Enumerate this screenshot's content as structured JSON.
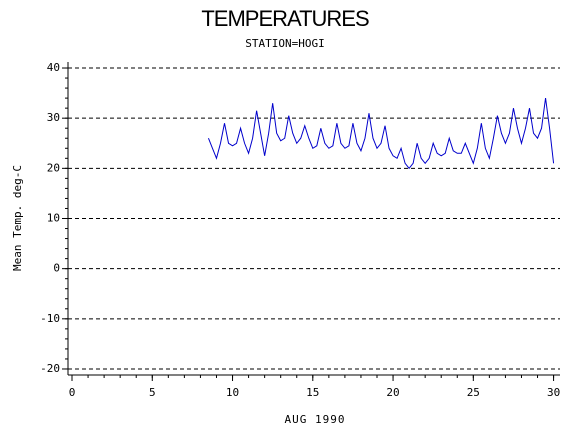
{
  "chart_data": {
    "type": "line",
    "title": "TEMPERATURES",
    "subtitle": "STATION=HOGI",
    "x_label": "AUG 1990",
    "y_label": "Mean Temp. deg-C",
    "x": [
      8.5,
      8.75,
      9.0,
      9.25,
      9.5,
      9.75,
      10.0,
      10.25,
      10.5,
      10.75,
      11.0,
      11.25,
      11.5,
      11.75,
      12.0,
      12.25,
      12.5,
      12.75,
      13.0,
      13.25,
      13.5,
      13.75,
      14.0,
      14.25,
      14.5,
      14.75,
      15.0,
      15.25,
      15.5,
      15.75,
      16.0,
      16.25,
      16.5,
      16.75,
      17.0,
      17.25,
      17.5,
      17.75,
      18.0,
      18.25,
      18.5,
      18.75,
      19.0,
      19.25,
      19.5,
      19.75,
      20.0,
      20.25,
      20.5,
      20.75,
      21.0,
      21.25,
      21.5,
      21.75,
      22.0,
      22.25,
      22.5,
      22.75,
      23.0,
      23.25,
      23.5,
      23.75,
      24.0,
      24.25,
      24.5,
      24.75,
      25.0,
      25.25,
      25.5,
      25.75,
      26.0,
      26.25,
      26.5,
      26.75,
      27.0,
      27.25,
      27.5,
      27.75,
      28.0,
      28.25,
      28.5,
      28.75,
      29.0,
      29.25,
      29.5,
      29.75,
      30.0
    ],
    "series": [
      {
        "name": "Mean Temp",
        "color": "#0000cc",
        "values": [
          26,
          24,
          22,
          25,
          29,
          25,
          24.5,
          25,
          28,
          25,
          23,
          26,
          31.5,
          27,
          22.5,
          27,
          33,
          27,
          25.5,
          26,
          30.5,
          27,
          25,
          26,
          28.5,
          26,
          24,
          24.5,
          28,
          25,
          24,
          24.5,
          29,
          25,
          24,
          24.5,
          29,
          25,
          23.5,
          26,
          31,
          26,
          24,
          25,
          28.5,
          24,
          22.5,
          22,
          24,
          21,
          20,
          21,
          25,
          22,
          21,
          22,
          25,
          23,
          22.5,
          23,
          26,
          23.5,
          23,
          23,
          25,
          23,
          21,
          24,
          29,
          24,
          22,
          26,
          30.5,
          27,
          25,
          27,
          32,
          28,
          25,
          28,
          32,
          27,
          26,
          28,
          34,
          28,
          21
        ]
      }
    ],
    "xlim": [
      -0.25,
      30.4
    ],
    "ylim": [
      -21.2,
      41.2
    ],
    "xticks": [
      0,
      5,
      10,
      15,
      20,
      25,
      30
    ],
    "yticks": [
      -20,
      -10,
      0,
      10,
      20,
      30,
      40
    ],
    "xminorticks": [
      0,
      1,
      2,
      3,
      4,
      5,
      6,
      7,
      8,
      9,
      10,
      11,
      12,
      13,
      14,
      15,
      16,
      17,
      18,
      19,
      20,
      21,
      22,
      23,
      24,
      25,
      26,
      27,
      28,
      29,
      30
    ],
    "yminorticks": [
      -20,
      -18,
      -16,
      -14,
      -12,
      -10,
      -8,
      -6,
      -4,
      -2,
      0,
      2,
      4,
      6,
      8,
      10,
      12,
      14,
      16,
      18,
      20,
      22,
      24,
      26,
      28,
      30,
      32,
      34,
      36,
      38,
      40
    ],
    "grid": true
  }
}
